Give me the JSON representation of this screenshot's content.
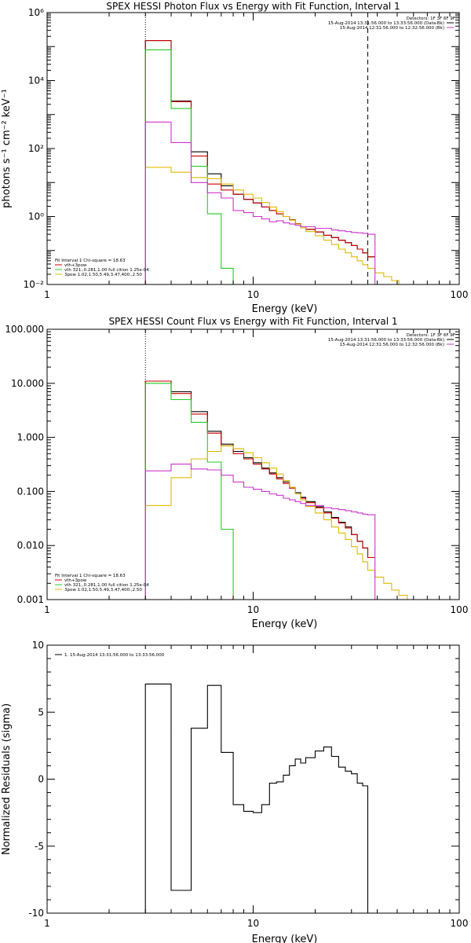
{
  "chart_data": [
    {
      "id": "photon",
      "type": "line",
      "step": true,
      "title": "SPEX HESSI Photon Flux vs Energy with Fit Function, Interval 1",
      "xlabel": "Energy (keV)",
      "ylabel": "photons s⁻¹ cm⁻² keV⁻¹",
      "xscale": "log",
      "yscale": "log",
      "xlim": [
        1,
        100
      ],
      "ylim": [
        0.01,
        1000000
      ],
      "x_ticks": [
        1,
        10,
        100
      ],
      "x_tick_labels": [
        "1",
        "10",
        "100"
      ],
      "y_ticks": [
        0.01,
        1,
        100,
        10000,
        1000000
      ],
      "y_tick_labels": [
        "10⁻²",
        "10⁰",
        "10²",
        "10⁴",
        "10⁶"
      ],
      "vlines": [
        {
          "x": 3,
          "style": "dotted"
        },
        {
          "x": 36,
          "style": "dashed"
        }
      ],
      "legend_top": [
        {
          "text": "Detectors: 1F 3F 6F 9F"
        },
        {
          "text": "15-Aug-2014 13:31:56.000 to 13:33:56.000 (Data-Bk)",
          "color": "#000000"
        },
        {
          "text": "15-Aug-2014 12:31:56.000 to 12:32:56.000 (Bk)",
          "color": "#cc33cc"
        }
      ],
      "legend_bottom": [
        {
          "text": "Fit Interval 1    Chi-square = 18.63"
        },
        {
          "text": "vth+3pow",
          "color": "#cc0000"
        },
        {
          "text": "vth 321.,0.281,1.00  full cition 1.25e-04",
          "color": "#22cc22"
        },
        {
          "text": "3pow 1.02,1.50,5.49,3.47,400.,2.50",
          "color": "#ddbb00"
        }
      ],
      "edges": [
        3,
        4,
        5,
        6,
        7,
        8,
        9,
        10,
        11,
        12,
        13,
        14,
        15,
        16,
        17,
        18,
        20,
        22,
        24,
        26,
        28,
        30,
        32,
        34,
        36,
        39,
        43,
        47,
        51,
        56,
        62,
        68
      ],
      "series": [
        {
          "color": "#000000",
          "values": [
            150000,
            2500,
            80,
            18,
            8,
            4.5,
            3.2,
            2.5,
            1.9,
            1.5,
            1.2,
            1.0,
            0.8,
            0.62,
            0.5,
            0.42,
            0.35,
            0.28,
            0.24,
            0.2,
            0.17,
            0.14,
            0.11,
            0.085,
            0.065
          ]
        },
        {
          "color": "#cc0000",
          "values": [
            150000,
            2400,
            60,
            9,
            6,
            4.5,
            3.2,
            2.5,
            1.9,
            1.5,
            1.2,
            1.0,
            0.8,
            0.62,
            0.5,
            0.42,
            0.35,
            0.28,
            0.24,
            0.2,
            0.17,
            0.14,
            0.11,
            0.085,
            0.065
          ]
        },
        {
          "color": "#22cc22",
          "values": [
            80000,
            1500,
            30,
            1.2,
            0.03,
            0.01
          ]
        },
        {
          "color": "#ddbb00",
          "values": [
            28,
            20,
            14,
            13,
            9,
            6,
            4.5,
            3.5,
            2.6,
            1.9,
            1.4,
            1.0,
            0.78,
            0.6,
            0.46,
            0.36,
            0.27,
            0.2,
            0.15,
            0.11,
            0.085,
            0.065,
            0.05,
            0.038,
            0.03,
            0.022,
            0.017,
            0.013,
            0.01,
            0.008,
            0.006
          ]
        },
        {
          "color": "#cc33cc",
          "values": [
            600,
            150,
            10,
            5,
            3.5,
            1.5,
            1.3,
            1.0,
            0.85,
            0.7,
            0.75,
            0.65,
            0.6,
            0.55,
            0.5,
            0.5,
            0.45,
            0.45,
            0.4,
            0.38,
            0.36,
            0.34,
            0.33,
            0.32,
            0.3
          ],
          "drop_to_min": true
        }
      ]
    },
    {
      "id": "count",
      "type": "line",
      "step": true,
      "title": "SPEX HESSI Count Flux vs Energy with Fit Function, Interval 1",
      "xlabel": "Energy (keV)",
      "ylabel": "",
      "xscale": "log",
      "yscale": "log",
      "xlim": [
        1,
        100
      ],
      "ylim": [
        0.001,
        100
      ],
      "x_ticks": [
        1,
        10,
        100
      ],
      "x_tick_labels": [
        "1",
        "10",
        "100"
      ],
      "y_ticks": [
        0.001,
        0.01,
        0.1,
        1,
        10,
        100
      ],
      "y_tick_labels": [
        "0.001",
        "0.010",
        "0.100",
        "1.000",
        "10.000",
        "100.000"
      ],
      "vlines": [
        {
          "x": 3,
          "style": "dotted"
        }
      ],
      "legend_top": [
        {
          "text": "Detectors: 1F 3F 6F 9F"
        },
        {
          "text": "15-Aug-2014 13:31:56.000 to 13:33:56.000 (Data-Bk)",
          "color": "#000000"
        },
        {
          "text": "15-Aug-2014 12:31:56.000 to 12:32:56.000 (Bk)",
          "color": "#cc33cc"
        }
      ],
      "legend_bottom": [
        {
          "text": "Fit Interval 1    Chi-square = 18.63"
        },
        {
          "text": "vth+3pow",
          "color": "#cc0000"
        },
        {
          "text": "vth 321.,0.281,1.00  full cition 1.25e-04",
          "color": "#22cc22"
        },
        {
          "text": "3pow 1.02,1.50,5.49,3.47,400.,2.50",
          "color": "#ddbb00"
        }
      ],
      "edges": [
        3,
        4,
        5,
        6,
        7,
        8,
        9,
        10,
        11,
        12,
        13,
        14,
        15,
        16,
        17,
        18,
        20,
        22,
        24,
        26,
        28,
        30,
        32,
        34,
        36,
        39,
        43,
        47,
        51,
        56,
        62,
        68
      ],
      "series": [
        {
          "color": "#000000",
          "values": [
            11,
            7,
            3,
            1.3,
            0.75,
            0.55,
            0.42,
            0.34,
            0.27,
            0.22,
            0.18,
            0.15,
            0.12,
            0.095,
            0.078,
            0.065,
            0.052,
            0.042,
            0.033,
            0.027,
            0.022,
            0.016,
            0.012,
            0.009,
            0.006
          ]
        },
        {
          "color": "#cc0000",
          "values": [
            11,
            6.5,
            2.7,
            1.2,
            0.7,
            0.5,
            0.4,
            0.32,
            0.26,
            0.21,
            0.17,
            0.14,
            0.115,
            0.09,
            0.075,
            0.062,
            0.05,
            0.04,
            0.032,
            0.026,
            0.021,
            0.016,
            0.012,
            0.009,
            0.006
          ]
        },
        {
          "color": "#22cc22",
          "values": [
            10,
            5,
            1.9,
            0.35,
            0.02,
            0.0005
          ]
        },
        {
          "color": "#ddbb00",
          "values": [
            0.055,
            0.18,
            0.4,
            0.55,
            0.7,
            0.62,
            0.52,
            0.42,
            0.34,
            0.27,
            0.21,
            0.16,
            0.12,
            0.09,
            0.07,
            0.053,
            0.04,
            0.03,
            0.022,
            0.017,
            0.013,
            0.0095,
            0.007,
            0.005,
            0.0035,
            0.0026,
            0.002,
            0.0015,
            0.0012,
            0.0009,
            0.0007
          ]
        },
        {
          "color": "#cc33cc",
          "values": [
            0.24,
            0.32,
            0.26,
            0.25,
            0.2,
            0.15,
            0.12,
            0.11,
            0.1,
            0.09,
            0.085,
            0.075,
            0.07,
            0.065,
            0.06,
            0.055,
            0.055,
            0.05,
            0.048,
            0.046,
            0.044,
            0.042,
            0.04,
            0.038,
            0.037
          ],
          "drop_to_min": true
        }
      ]
    },
    {
      "id": "residuals",
      "type": "line",
      "step": true,
      "title": "",
      "xlabel": "Energy (keV)",
      "ylabel": "Normalized Residuals (sigma)",
      "xscale": "log",
      "yscale": "linear",
      "xlim": [
        1,
        100
      ],
      "ylim": [
        -10,
        10
      ],
      "x_ticks": [
        1,
        10,
        100
      ],
      "x_tick_labels": [
        "1",
        "10",
        "100"
      ],
      "y_ticks": [
        -10,
        -5,
        0,
        5,
        10
      ],
      "y_tick_labels": [
        "-10",
        "-5",
        "0",
        "5",
        "10"
      ],
      "vlines": [],
      "legend_top": [],
      "legend_bottom": [],
      "legend_topleft": [
        {
          "text": "1. 15-Aug-2014 13:31:56.000 to 13:33:56.000",
          "color": "#000000"
        }
      ],
      "edges": [
        3,
        4,
        5,
        6,
        7,
        8,
        9,
        10,
        11,
        12,
        13,
        14,
        15,
        16,
        17,
        18,
        20,
        22,
        24,
        26,
        28,
        30,
        32,
        34,
        36
      ],
      "series": [
        {
          "color": "#000000",
          "values": [
            7.1,
            -8.3,
            3.8,
            7.0,
            2.0,
            -1.9,
            -2.4,
            -2.5,
            -1.9,
            -0.3,
            -0.2,
            0.3,
            1.0,
            1.5,
            1.2,
            1.6,
            2.1,
            2.4,
            1.7,
            0.9,
            0.6,
            0.4,
            -0.3,
            -0.5
          ],
          "drop_to_min": true,
          "start_from_min": true
        }
      ]
    }
  ]
}
